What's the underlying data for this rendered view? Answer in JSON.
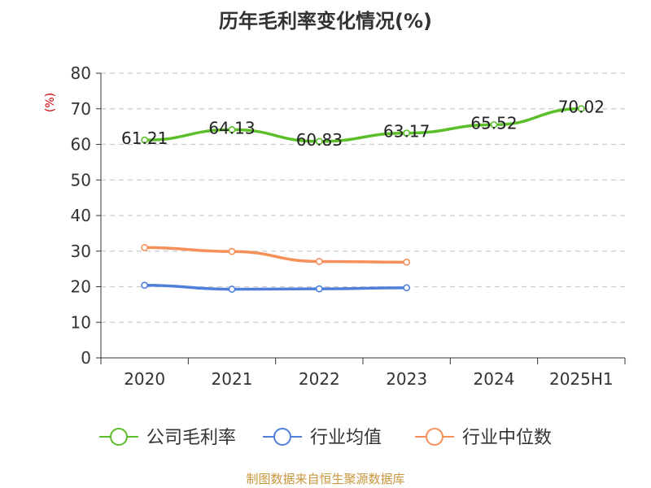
{
  "chart_data": {
    "type": "line",
    "title": "历年毛利率变化情况(%)",
    "ylabel": "(%)",
    "xlabel": "",
    "categories": [
      "2020",
      "2021",
      "2022",
      "2023",
      "2024",
      "2025H1"
    ],
    "ylim": [
      0,
      80
    ],
    "yticks": [
      0,
      10,
      20,
      30,
      40,
      50,
      60,
      70,
      80
    ],
    "grid": true,
    "legend_position": "bottom",
    "series": [
      {
        "name": "公司毛利率",
        "color": "#5cbf2a",
        "values": [
          61.21,
          64.13,
          60.83,
          63.17,
          65.52,
          70.02
        ],
        "labels": [
          "61.21",
          "64.13",
          "60.83",
          "63.17",
          "65.52",
          "70.02"
        ]
      },
      {
        "name": "行业均值",
        "color": "#4f7fdb",
        "values": [
          20.4,
          19.3,
          19.4,
          19.7,
          null,
          null
        ]
      },
      {
        "name": "行业中位数",
        "color": "#f5905a",
        "values": [
          31.0,
          29.9,
          27.1,
          26.9,
          null,
          null
        ]
      }
    ]
  },
  "footer": {
    "source": "制图数据来自恒生聚源数据库"
  }
}
